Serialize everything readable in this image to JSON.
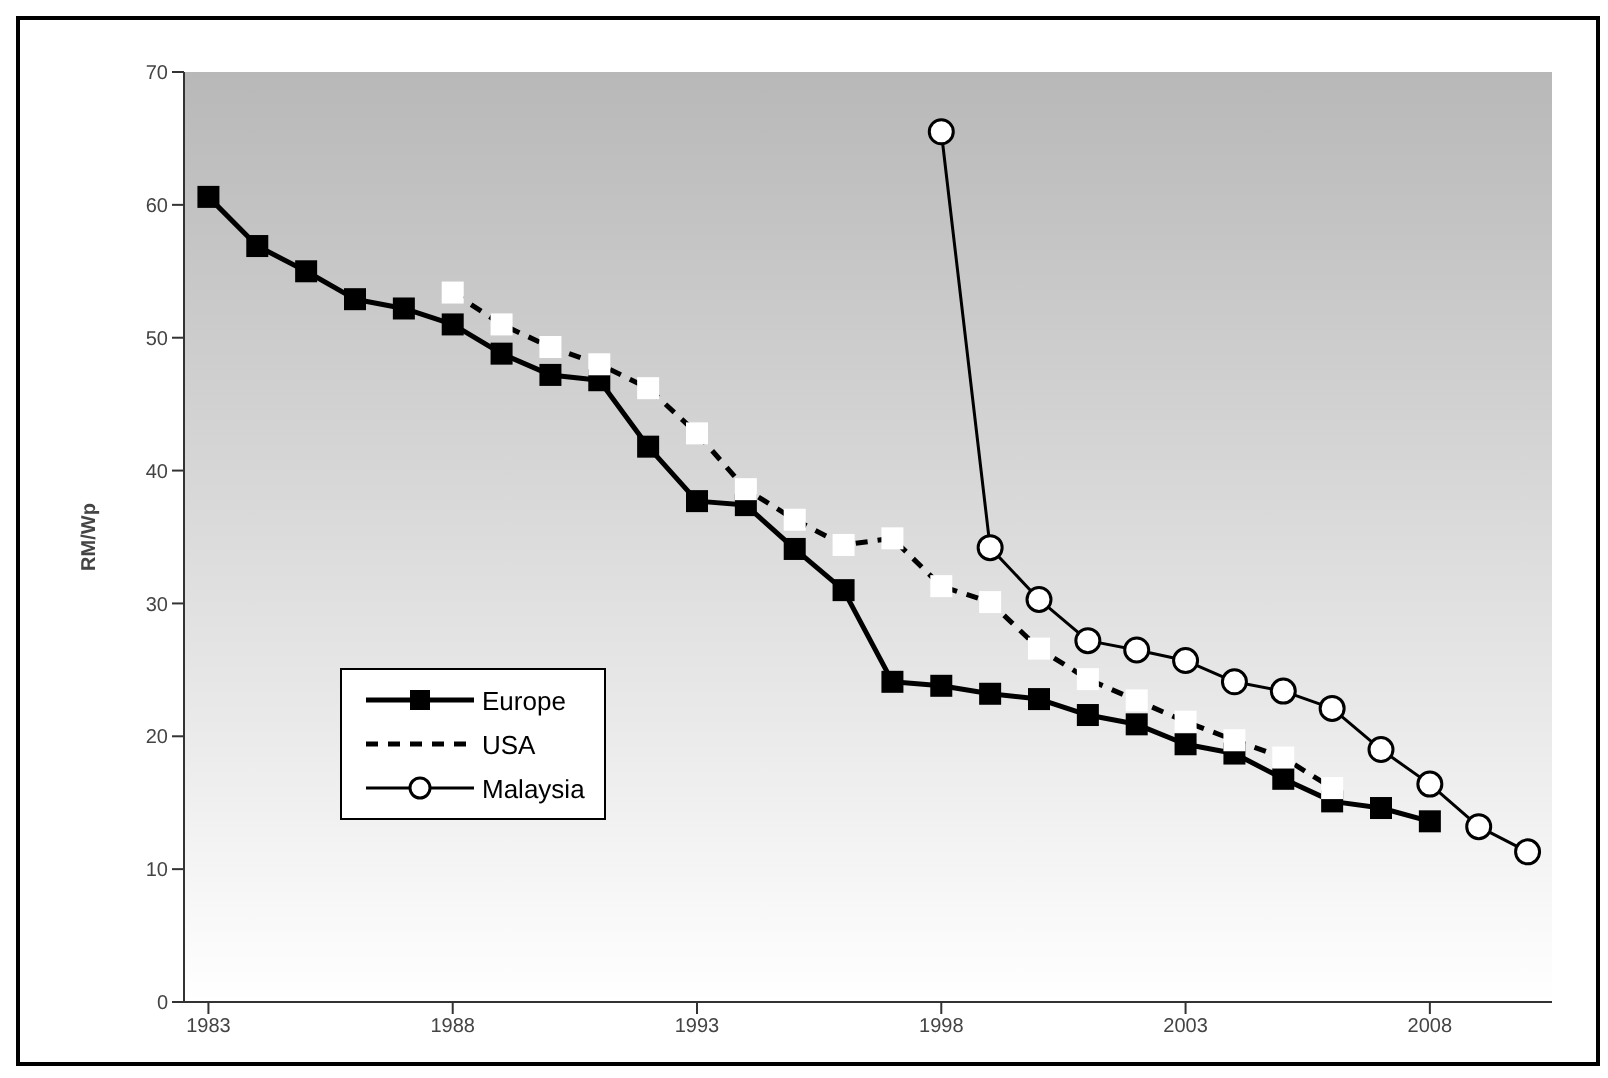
{
  "chart_data": {
    "type": "line",
    "ylabel": "RM/Wp",
    "categories": [
      "1983",
      null,
      null,
      null,
      null,
      "1988",
      null,
      null,
      null,
      null,
      "1993",
      null,
      null,
      null,
      null,
      "1998",
      null,
      null,
      null,
      null,
      "2003",
      null,
      null,
      null,
      null,
      "2008",
      null,
      null
    ],
    "series": [
      {
        "name": "Europe",
        "color": "#000000",
        "marker": "square",
        "line_style": "solid",
        "values": [
          60.6,
          56.9,
          55.0,
          52.9,
          52.2,
          51.0,
          48.8,
          47.2,
          46.8,
          41.8,
          37.7,
          37.4,
          34.1,
          31.0,
          24.1,
          23.8,
          23.2,
          22.8,
          21.6,
          20.9,
          19.4,
          18.7,
          16.8,
          15.1,
          14.6,
          13.6,
          null,
          null
        ]
      },
      {
        "name": "USA",
        "color": "#000000",
        "marker": "square",
        "line_style": "dashed",
        "values": [
          null,
          null,
          null,
          null,
          null,
          53.4,
          51.0,
          49.3,
          48.0,
          46.2,
          42.8,
          38.6,
          36.3,
          34.4,
          34.9,
          31.3,
          30.1,
          26.6,
          24.3,
          22.7,
          21.1,
          19.7,
          18.4,
          16.1,
          null,
          null,
          null,
          null
        ]
      },
      {
        "name": "Malaysia",
        "color": "#000000",
        "marker": "circle",
        "line_style": "solid",
        "values": [
          null,
          null,
          null,
          null,
          null,
          null,
          null,
          null,
          null,
          null,
          null,
          null,
          null,
          null,
          null,
          65.5,
          34.2,
          30.3,
          27.2,
          26.5,
          25.7,
          24.1,
          23.4,
          22.1,
          19.0,
          16.4,
          13.2,
          11.3
        ]
      }
    ],
    "ylim": [
      0,
      70
    ],
    "yticks": [
      0,
      10,
      20,
      30,
      40,
      50,
      60,
      70
    ],
    "legend": "left"
  }
}
